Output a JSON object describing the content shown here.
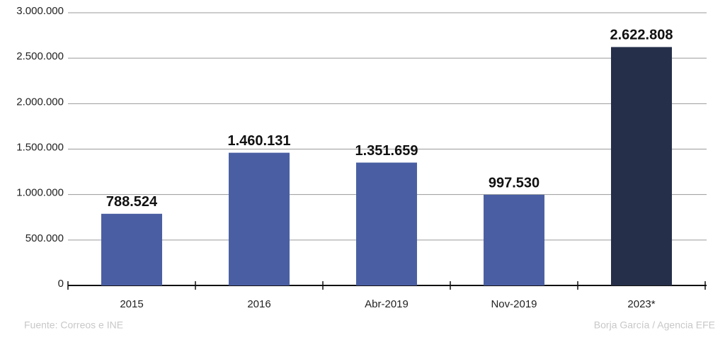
{
  "chart_data": {
    "type": "bar",
    "categories": [
      "2015",
      "2016",
      "Abr-2019",
      "Nov-2019",
      "2023*"
    ],
    "values": [
      788524,
      1460131,
      1351659,
      997530,
      2622808
    ],
    "value_labels": [
      "788.524",
      "1.460.131",
      "1.351.659",
      "997.530",
      "2.622.808"
    ],
    "colors": [
      "#4a5fa3",
      "#4a5fa3",
      "#4a5fa3",
      "#4a5fa3",
      "#252f4a"
    ],
    "ylim": [
      0,
      3000000
    ],
    "yticks": [
      0,
      {
        "value": 500000,
        "label": "500.000"
      },
      {
        "value": 1000000,
        "label": "1.000.000"
      },
      {
        "value": 1500000,
        "label": "1.500.000"
      },
      {
        "value": 2000000,
        "label": "2.000.000"
      },
      {
        "value": 2500000,
        "label": "2.500.000"
      },
      {
        "value": 3000000,
        "label": "3.000.000"
      }
    ],
    "grid": true,
    "source": "Fuente: Correos e INE",
    "credit": "Borja García / Agencia EFE"
  }
}
